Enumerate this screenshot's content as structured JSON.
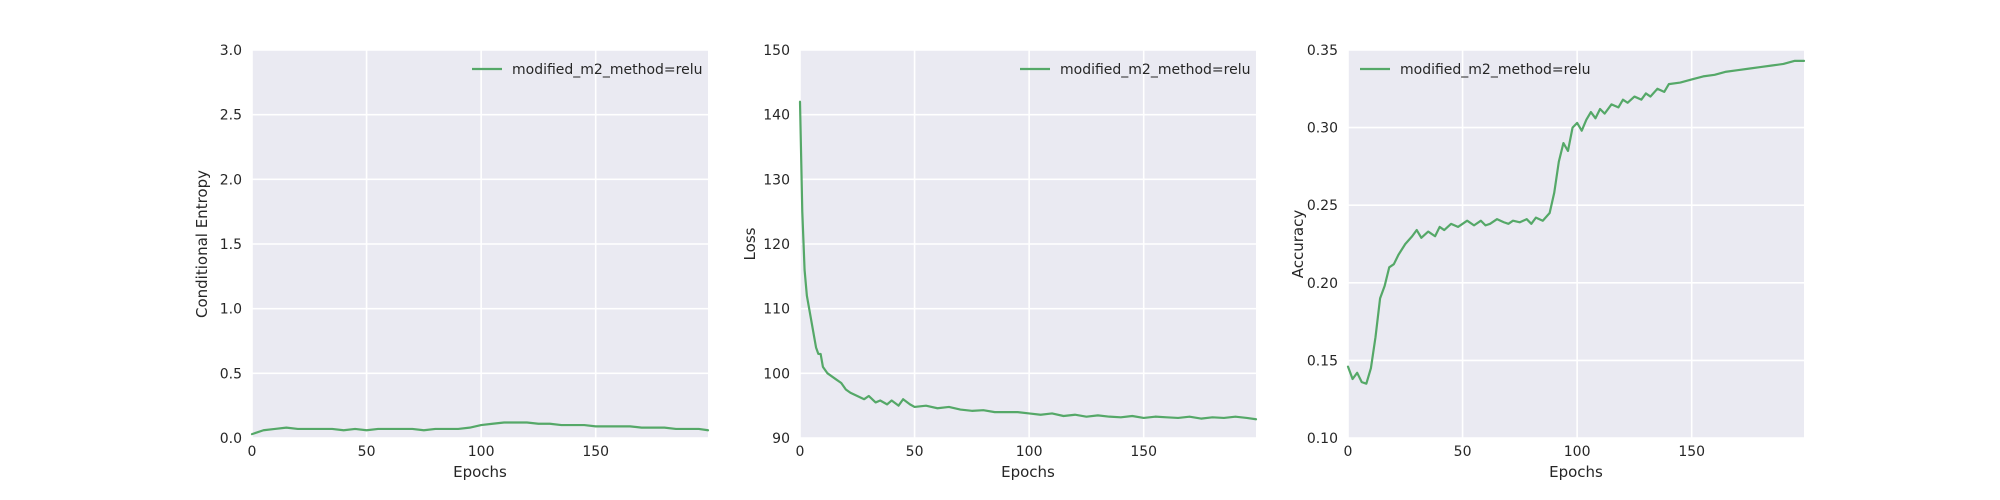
{
  "figure": {
    "colors": {
      "series": "#55a868",
      "plot_bg": "#eaeaf2",
      "grid": "#ffffff",
      "text": "#262626"
    }
  },
  "chart_data": [
    {
      "type": "line",
      "title": "",
      "xlabel": "Epochs",
      "ylabel": "Conditional Entropy",
      "xlim": [
        0,
        199
      ],
      "ylim": [
        0.0,
        3.0
      ],
      "xticks": [
        0,
        50,
        100,
        150
      ],
      "xtick_labels": [
        "0",
        "50",
        "100",
        "150"
      ],
      "yticks": [
        0.0,
        0.5,
        1.0,
        1.5,
        2.0,
        2.5,
        3.0
      ],
      "ytick_labels": [
        "0.0",
        "0.5",
        "1.0",
        "1.5",
        "2.0",
        "2.5",
        "3.0"
      ],
      "grid": true,
      "legend_position": "top-right",
      "series": [
        {
          "name": "modified_m2_method=relu",
          "color": "#55a868",
          "x": [
            0,
            5,
            10,
            15,
            20,
            25,
            30,
            35,
            40,
            45,
            50,
            55,
            60,
            65,
            70,
            75,
            80,
            85,
            90,
            95,
            100,
            105,
            110,
            115,
            120,
            125,
            130,
            135,
            140,
            145,
            150,
            155,
            160,
            165,
            170,
            175,
            180,
            185,
            190,
            195,
            199
          ],
          "y": [
            0.03,
            0.06,
            0.07,
            0.08,
            0.07,
            0.07,
            0.07,
            0.07,
            0.06,
            0.07,
            0.06,
            0.07,
            0.07,
            0.07,
            0.07,
            0.06,
            0.07,
            0.07,
            0.07,
            0.08,
            0.1,
            0.11,
            0.12,
            0.12,
            0.12,
            0.11,
            0.11,
            0.1,
            0.1,
            0.1,
            0.09,
            0.09,
            0.09,
            0.09,
            0.08,
            0.08,
            0.08,
            0.07,
            0.07,
            0.07,
            0.06
          ]
        }
      ]
    },
    {
      "type": "line",
      "title": "",
      "xlabel": "Epochs",
      "ylabel": "Loss",
      "xlim": [
        0,
        199
      ],
      "ylim": [
        90,
        150
      ],
      "xticks": [
        0,
        50,
        100,
        150
      ],
      "xtick_labels": [
        "0",
        "50",
        "100",
        "150"
      ],
      "yticks": [
        90,
        100,
        110,
        120,
        130,
        140,
        150
      ],
      "ytick_labels": [
        "90",
        "100",
        "110",
        "120",
        "130",
        "140",
        "150"
      ],
      "grid": true,
      "legend_position": "top-right",
      "series": [
        {
          "name": "modified_m2_method=relu",
          "color": "#55a868",
          "x": [
            0,
            1,
            2,
            3,
            4,
            5,
            6,
            7,
            8,
            9,
            10,
            12,
            14,
            16,
            18,
            20,
            22,
            25,
            28,
            30,
            33,
            35,
            38,
            40,
            43,
            45,
            48,
            50,
            55,
            60,
            65,
            70,
            75,
            80,
            85,
            90,
            95,
            100,
            105,
            110,
            115,
            120,
            125,
            130,
            135,
            140,
            145,
            150,
            155,
            160,
            165,
            170,
            175,
            180,
            185,
            190,
            195,
            199
          ],
          "y": [
            142,
            125,
            116,
            112,
            110,
            108,
            106,
            104,
            103,
            103,
            101,
            100,
            99.5,
            99,
            98.5,
            97.5,
            97,
            96.5,
            96,
            96.5,
            95.5,
            95.8,
            95.2,
            95.8,
            95,
            96,
            95.2,
            94.8,
            95,
            94.6,
            94.8,
            94.4,
            94.2,
            94.3,
            94,
            94,
            94,
            93.8,
            93.6,
            93.8,
            93.4,
            93.6,
            93.3,
            93.5,
            93.3,
            93.2,
            93.4,
            93.1,
            93.3,
            93.2,
            93.1,
            93.3,
            93.0,
            93.2,
            93.1,
            93.3,
            93.1,
            92.9
          ]
        }
      ]
    },
    {
      "type": "line",
      "title": "",
      "xlabel": "Epochs",
      "ylabel": "Accuracy",
      "xlim": [
        0,
        199
      ],
      "ylim": [
        0.1,
        0.35
      ],
      "xticks": [
        0,
        50,
        100,
        150
      ],
      "xtick_labels": [
        "0",
        "50",
        "100",
        "150"
      ],
      "yticks": [
        0.1,
        0.15,
        0.2,
        0.25,
        0.3,
        0.35
      ],
      "ytick_labels": [
        "0.10",
        "0.15",
        "0.20",
        "0.25",
        "0.30",
        "0.35"
      ],
      "grid": true,
      "legend_position": "top-left",
      "series": [
        {
          "name": "modified_m2_method=relu",
          "color": "#55a868",
          "x": [
            0,
            2,
            4,
            6,
            8,
            10,
            12,
            14,
            16,
            18,
            20,
            22,
            25,
            28,
            30,
            32,
            35,
            38,
            40,
            42,
            45,
            48,
            50,
            52,
            55,
            58,
            60,
            62,
            65,
            68,
            70,
            72,
            75,
            78,
            80,
            82,
            85,
            88,
            90,
            92,
            94,
            96,
            98,
            100,
            102,
            104,
            106,
            108,
            110,
            112,
            115,
            118,
            120,
            122,
            125,
            128,
            130,
            132,
            135,
            138,
            140,
            145,
            150,
            155,
            160,
            165,
            170,
            175,
            180,
            185,
            190,
            195,
            199
          ],
          "y": [
            0.146,
            0.138,
            0.142,
            0.136,
            0.135,
            0.145,
            0.165,
            0.19,
            0.198,
            0.21,
            0.212,
            0.218,
            0.225,
            0.23,
            0.234,
            0.229,
            0.233,
            0.23,
            0.236,
            0.234,
            0.238,
            0.236,
            0.238,
            0.24,
            0.237,
            0.24,
            0.237,
            0.238,
            0.241,
            0.239,
            0.238,
            0.24,
            0.239,
            0.241,
            0.238,
            0.242,
            0.24,
            0.245,
            0.258,
            0.278,
            0.29,
            0.285,
            0.3,
            0.303,
            0.298,
            0.305,
            0.31,
            0.306,
            0.312,
            0.309,
            0.315,
            0.313,
            0.318,
            0.316,
            0.32,
            0.318,
            0.322,
            0.32,
            0.325,
            0.323,
            0.328,
            0.329,
            0.331,
            0.333,
            0.334,
            0.336,
            0.337,
            0.338,
            0.339,
            0.34,
            0.341,
            0.343,
            0.343
          ]
        }
      ]
    }
  ]
}
